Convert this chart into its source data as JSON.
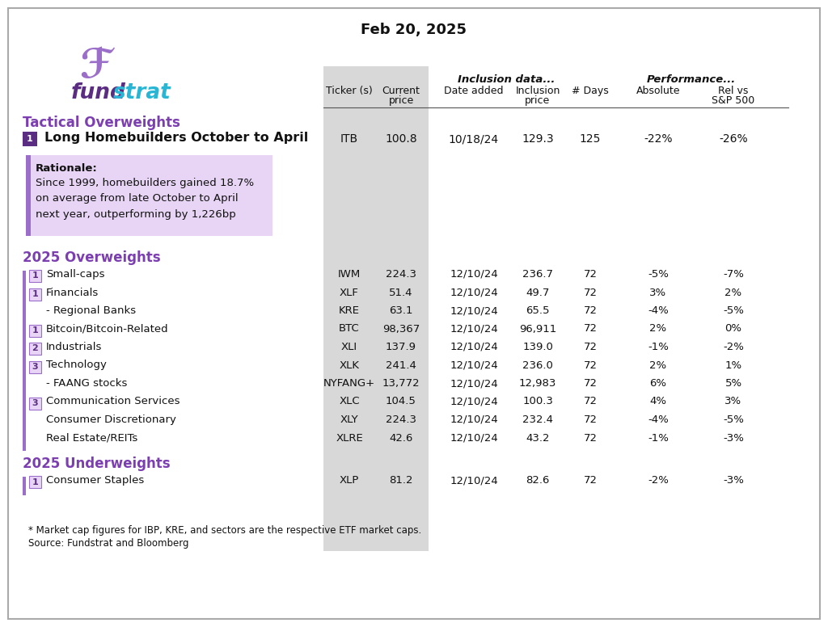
{
  "title": "Feb 20, 2025",
  "bg_color": "#ffffff",
  "border_color": "#aaaaaa",
  "purple_dark": "#5a2d82",
  "purple_medium": "#9b6fc9",
  "purple_light": "#e8d5f5",
  "purple_label": "#7b3fb0",
  "purple_text": "#7b3fb0",
  "cyan_color": "#29b6d4",
  "gray_col_bg": "#d8d8d8",
  "tactical_section": "Tactical Overweights",
  "tactical_row": {
    "rank": "1",
    "name": "Long Homebuilders October to April",
    "ticker": "ITB",
    "current_price": "100.8",
    "date_added": "10/18/24",
    "inclusion_price": "129.3",
    "days": "125",
    "absolute": "-22%",
    "rel_sp500": "-26%",
    "rationale_title": "Rationale:",
    "rationale_text": "Since 1999, homebuilders gained 18.7%\non average from late October to April\nnext year, outperforming by 1,226bp"
  },
  "overweights_section": "2025 Overweights",
  "overweight_rows": [
    {
      "rank": "1",
      "name": "Small-caps",
      "ticker": "IWM",
      "current_price": "224.3",
      "date_added": "12/10/24",
      "inclusion_price": "236.7",
      "days": "72",
      "absolute": "-5%",
      "rel_sp500": "-7%"
    },
    {
      "rank": "1",
      "name": "Financials",
      "ticker": "XLF",
      "current_price": "51.4",
      "date_added": "12/10/24",
      "inclusion_price": "49.7",
      "days": "72",
      "absolute": "3%",
      "rel_sp500": "2%"
    },
    {
      "rank": "",
      "name": "- Regional Banks",
      "ticker": "KRE",
      "current_price": "63.1",
      "date_added": "12/10/24",
      "inclusion_price": "65.5",
      "days": "72",
      "absolute": "-4%",
      "rel_sp500": "-5%"
    },
    {
      "rank": "1",
      "name": "Bitcoin/Bitcoin-Related",
      "ticker": "BTC",
      "current_price": "98,367",
      "date_added": "12/10/24",
      "inclusion_price": "96,911",
      "days": "72",
      "absolute": "2%",
      "rel_sp500": "0%"
    },
    {
      "rank": "2",
      "name": "Industrials",
      "ticker": "XLI",
      "current_price": "137.9",
      "date_added": "12/10/24",
      "inclusion_price": "139.0",
      "days": "72",
      "absolute": "-1%",
      "rel_sp500": "-2%"
    },
    {
      "rank": "3",
      "name": "Technology",
      "ticker": "XLK",
      "current_price": "241.4",
      "date_added": "12/10/24",
      "inclusion_price": "236.0",
      "days": "72",
      "absolute": "2%",
      "rel_sp500": "1%"
    },
    {
      "rank": "",
      "name": "- FAANG stocks",
      "ticker": "NYFANG+",
      "current_price": "13,772",
      "date_added": "12/10/24",
      "inclusion_price": "12,983",
      "days": "72",
      "absolute": "6%",
      "rel_sp500": "5%"
    },
    {
      "rank": "3",
      "name": "Communication Services",
      "ticker": "XLC",
      "current_price": "104.5",
      "date_added": "12/10/24",
      "inclusion_price": "100.3",
      "days": "72",
      "absolute": "4%",
      "rel_sp500": "3%"
    },
    {
      "rank": "",
      "name": "Consumer Discretionary",
      "ticker": "XLY",
      "current_price": "224.3",
      "date_added": "12/10/24",
      "inclusion_price": "232.4",
      "days": "72",
      "absolute": "-4%",
      "rel_sp500": "-5%"
    },
    {
      "rank": "",
      "name": "Real Estate/REITs",
      "ticker": "XLRE",
      "current_price": "42.6",
      "date_added": "12/10/24",
      "inclusion_price": "43.2",
      "days": "72",
      "absolute": "-1%",
      "rel_sp500": "-3%"
    }
  ],
  "underweights_section": "2025 Underweights",
  "underweight_rows": [
    {
      "rank": "1",
      "name": "Consumer Staples",
      "ticker": "XLP",
      "current_price": "81.2",
      "date_added": "12/10/24",
      "inclusion_price": "82.6",
      "days": "72",
      "absolute": "-2%",
      "rel_sp500": "-3%"
    }
  ],
  "footnote1": "* Market cap figures for IBP, KRE, and sectors are the respective ETF market caps.",
  "footnote2": "Source: Fundstrat and Bloomberg",
  "col_headers_line1": {
    "ticker": "Ticker (s)",
    "current_price": "Current",
    "date_added": "Date added",
    "inclusion_price": "Inclusion",
    "days": "# Days",
    "absolute": "Absolute",
    "rel_sp500": "Rel vs"
  },
  "col_headers_line2": {
    "current_price": "price",
    "inclusion_price": "price",
    "rel_sp500": "S&P 500"
  },
  "group_headers": {
    "inclusion": "Inclusion data...",
    "performance": "Performance..."
  }
}
